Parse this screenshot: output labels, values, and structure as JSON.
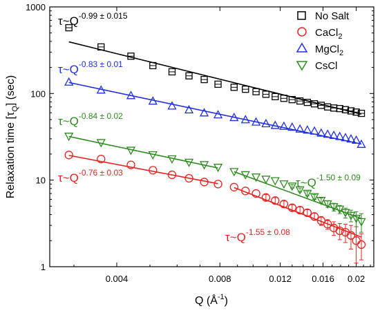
{
  "chart_data": {
    "type": "scatter",
    "x_scale": "log",
    "y_scale": "log",
    "xlim": [
      0.00255,
      0.0225
    ],
    "ylim": [
      1,
      1000
    ],
    "xlabel": {
      "main": "Q (Å",
      "sup": "-1",
      "end": ")"
    },
    "ylabel": {
      "main": "Relaxation time [τ",
      "sub": "Q",
      "end": "] (sec)"
    },
    "x_ticks": [
      {
        "value": 0.004,
        "label": "0.004"
      },
      {
        "value": 0.008,
        "label": "0.008"
      },
      {
        "value": 0.012,
        "label": "0.012"
      },
      {
        "value": 0.016,
        "label": "0.016"
      },
      {
        "value": 0.02,
        "label": "0.02"
      }
    ],
    "y_ticks": [
      {
        "value": 1,
        "label": "1"
      },
      {
        "value": 10,
        "label": "10"
      },
      {
        "value": 100,
        "label": "100"
      },
      {
        "value": 1000,
        "label": "1000"
      }
    ],
    "legend_position": "top-right",
    "series": [
      {
        "name": "No Salt",
        "name_main": "No Salt",
        "name_sub": "",
        "marker": "square",
        "color": "#000000",
        "x": [
          0.0029,
          0.0036,
          0.0044,
          0.0051,
          0.0058,
          0.0065,
          0.0072,
          0.0079,
          0.0088,
          0.0095,
          0.0102,
          0.0109,
          0.0116,
          0.0123,
          0.013,
          0.0137,
          0.0144,
          0.0151,
          0.0158,
          0.0165,
          0.0172,
          0.0179,
          0.0186,
          0.0193,
          0.02,
          0.0207
        ],
        "y": [
          575,
          345,
          270,
          210,
          178,
          160,
          145,
          128,
          118,
          112,
          105,
          98,
          92,
          88,
          85,
          82,
          79,
          76,
          73,
          70,
          68,
          67,
          65,
          63,
          61,
          59
        ],
        "yerr": [
          0,
          0,
          0,
          0,
          0,
          0,
          0,
          0,
          0,
          0,
          0,
          0,
          0,
          0,
          0,
          0,
          0,
          0,
          0,
          0,
          0,
          0,
          0,
          0,
          0,
          0
        ]
      },
      {
        "name": "CaCl2",
        "name_main": "CaCl",
        "name_sub": "2",
        "marker": "circle",
        "color": "#e8231f",
        "x": [
          0.0029,
          0.0036,
          0.0044,
          0.0051,
          0.0058,
          0.0065,
          0.0072,
          0.0079,
          0.0088,
          0.0095,
          0.0102,
          0.0109,
          0.0116,
          0.0123,
          0.013,
          0.0137,
          0.0144,
          0.0151,
          0.0158,
          0.0165,
          0.0172,
          0.0179,
          0.0186,
          0.0193,
          0.02,
          0.0207
        ],
        "y": [
          19.5,
          17.5,
          15,
          13,
          11.5,
          10.5,
          9.5,
          9.0,
          8.3,
          7.5,
          7.0,
          6.3,
          5.8,
          5.3,
          4.8,
          4.5,
          4.2,
          3.8,
          3.4,
          3.1,
          2.8,
          2.6,
          2.5,
          2.3,
          2.0,
          1.8
        ],
        "yerr": [
          0,
          0,
          0,
          0,
          0,
          0,
          0,
          0,
          0,
          0,
          0,
          0.5,
          0.5,
          0.45,
          0.4,
          0.4,
          0.35,
          0.35,
          0.4,
          0.4,
          0.5,
          0.55,
          0.6,
          0.7,
          0.9,
          0.6
        ]
      },
      {
        "name": "MgCl2",
        "name_main": "MgCl",
        "name_sub": "2",
        "marker": "triangle-up",
        "color": "#1f2ee8",
        "x": [
          0.0029,
          0.0036,
          0.0044,
          0.0051,
          0.0058,
          0.0065,
          0.0072,
          0.0079,
          0.0088,
          0.0095,
          0.0102,
          0.0109,
          0.0116,
          0.0123,
          0.013,
          0.0137,
          0.0144,
          0.0151,
          0.0158,
          0.0165,
          0.0172,
          0.0179,
          0.0186,
          0.0193,
          0.02,
          0.0207
        ],
        "y": [
          136,
          110,
          95,
          82,
          72,
          65,
          60,
          57,
          53,
          50,
          47,
          45,
          43,
          42,
          41,
          39,
          38,
          37,
          35,
          34,
          33,
          32,
          31,
          30,
          29,
          26
        ],
        "yerr": [
          0,
          0,
          0,
          0,
          0,
          0,
          0,
          0,
          0,
          0,
          0,
          0,
          0,
          0,
          0,
          0,
          0,
          0,
          0,
          0,
          0,
          0,
          0,
          0,
          0,
          0
        ]
      },
      {
        "name": "CsCl",
        "name_main": "CsCl",
        "name_sub": "",
        "marker": "triangle-down",
        "color": "#2e8b1f",
        "x": [
          0.0029,
          0.0036,
          0.0044,
          0.0051,
          0.0058,
          0.0065,
          0.0072,
          0.0079,
          0.0088,
          0.0095,
          0.0102,
          0.0109,
          0.0116,
          0.0123,
          0.013,
          0.0137,
          0.0144,
          0.0151,
          0.0158,
          0.0165,
          0.0172,
          0.0179,
          0.0186,
          0.0193,
          0.02,
          0.0207
        ],
        "y": [
          32,
          27,
          22,
          19.5,
          17.5,
          16,
          15,
          14,
          12.5,
          11.5,
          10.8,
          10.2,
          9.8,
          9.0,
          8.5,
          7.7,
          7.0,
          6.4,
          5.8,
          5.3,
          4.9,
          4.6,
          4.2,
          3.9,
          3.6,
          3.3
        ],
        "yerr": [
          0,
          0,
          0,
          0,
          0,
          0,
          0,
          0,
          0,
          0,
          0,
          0,
          0,
          0,
          0.4,
          0.4,
          0.4,
          0.4,
          0.4,
          0.45,
          0.5,
          0.5,
          0.55,
          0.6,
          0.7,
          0.8
        ]
      }
    ],
    "fits": [
      {
        "series": "No Salt",
        "color": "#000000",
        "x": [
          0.0029,
          0.0207
        ],
        "y": [
          395,
          57.7
        ]
      },
      {
        "series": "MgCl2",
        "color": "#1f2ee8",
        "x": [
          0.0029,
          0.0207
        ],
        "y": [
          134,
          26.1
        ]
      },
      {
        "series": "CaCl2",
        "color": "#e8231f",
        "x": [
          0.0029,
          0.0079
        ],
        "y": [
          19.3,
          9.1
        ]
      },
      {
        "series": "CsCl",
        "color": "#2e8b1f",
        "x": [
          0.0029,
          0.0079
        ],
        "y": [
          31.9,
          13.8
        ]
      },
      {
        "series": "CaCl2",
        "color": "#e8231f",
        "x": [
          0.0088,
          0.0207
        ],
        "y": [
          8.2,
          2.2
        ]
      },
      {
        "series": "CsCl",
        "color": "#2e8b1f",
        "x": [
          0.0088,
          0.0207
        ],
        "y": [
          12.5,
          3.6
        ]
      }
    ],
    "annotations": [
      {
        "id": "black",
        "base": "τ~Q",
        "exp": "-0.99 ± 0.015",
        "color": "#000000"
      },
      {
        "id": "blue",
        "base": "τ~Q",
        "exp": "-0.83 ± 0.01",
        "color": "#1f2ee8"
      },
      {
        "id": "green1",
        "base": "τ~Q",
        "exp": "-0.84 ± 0.02",
        "color": "#2e8b1f"
      },
      {
        "id": "red1",
        "base": "τ~Q",
        "exp": "-0.76 ± 0.03",
        "color": "#e8231f"
      },
      {
        "id": "green2",
        "base": "τ~Q",
        "exp": "-1.50 ± 0.09",
        "color": "#2e8b1f"
      },
      {
        "id": "red2",
        "base": "τ~Q",
        "exp": "-1.55 ± 0.08",
        "color": "#e8231f"
      }
    ]
  }
}
